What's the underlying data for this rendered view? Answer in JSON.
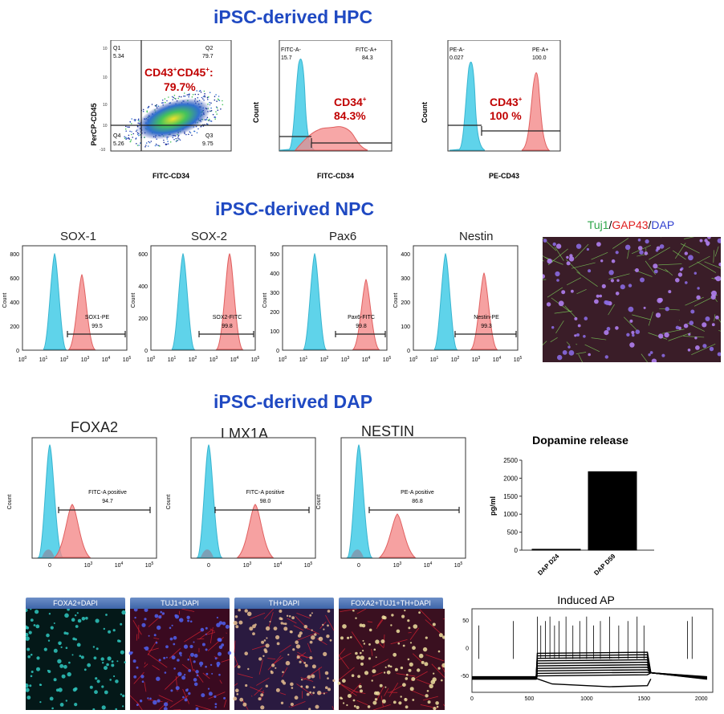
{
  "sections": {
    "hpc": "iPSC-derived HPC",
    "npc": "iPSC-derived NPC",
    "dap": "iPSC-derived DAP"
  },
  "colors": {
    "title": "#1f49c2",
    "red": "#c00000",
    "cyan": "#5fd3ea",
    "pink": "#f48a8a"
  },
  "hpc": {
    "scatter": {
      "ylabel": "PerCP-CD45",
      "xlabel": "FITC-CD34",
      "q1_name": "Q1",
      "q1_val": "5.34",
      "q2_name": "Q2",
      "q2_val": "79.7",
      "q3_name": "Q3",
      "q3_val": "9.75",
      "q4_name": "Q4",
      "q4_val": "5.26",
      "label_line1": "CD43",
      "label_sup1": "+",
      "label_mid": "CD45",
      "label_sup2": "+",
      "label_end": ":",
      "label_pct": "79.7%"
    },
    "hist_cd34": {
      "ylabel": "Count",
      "xlabel": "FITC-CD34",
      "neg_name": "FITC-A-",
      "neg_val": "15.7",
      "pos_name": "FITC-A+",
      "pos_val": "84.3",
      "label": "CD34",
      "label_sup": "+",
      "label_pct": "84.3%"
    },
    "hist_cd43": {
      "ylabel": "Count",
      "xlabel": "PE-CD43",
      "neg_name": "PE-A-",
      "neg_val": "0.027",
      "pos_name": "PE-A+",
      "pos_val": "100.0",
      "label": "CD43",
      "label_sup": "+",
      "label_pct": "100 %"
    }
  },
  "npc": {
    "plots": [
      {
        "title": "SOX-1",
        "gate": "SOX1-PE",
        "value": "99.5",
        "yticks": [
          "0",
          "200",
          "400",
          "600",
          "800"
        ]
      },
      {
        "title": "SOX-2",
        "gate": "SOX2-FITC",
        "value": "99.8",
        "yticks": [
          "0",
          "200",
          "400",
          "600"
        ]
      },
      {
        "title": "Pax6",
        "gate": "Pax6-FITC",
        "value": "99.8",
        "yticks": [
          "0",
          "100",
          "200",
          "300",
          "400",
          "500"
        ]
      },
      {
        "title": "Nestin",
        "gate": "Nestin-PE",
        "value": "99.3",
        "yticks": [
          "0",
          "100",
          "200",
          "300",
          "400"
        ]
      }
    ],
    "ylabel": "Count",
    "xticks": [
      "10",
      "10",
      "10",
      "10",
      "10",
      "10"
    ],
    "xexp": [
      "0",
      "1",
      "2",
      "3",
      "4",
      "5"
    ],
    "image_label": {
      "a": "Tuj1",
      "s1": "/",
      "b": "GAP43",
      "s2": "/",
      "c": "DAP"
    }
  },
  "dap": {
    "plots": [
      {
        "title": "FOXA2",
        "gate": "FITC-A positive",
        "value": "94.7"
      },
      {
        "title": "LMX1A",
        "gate": "FITC-A positive",
        "value": "98.0"
      },
      {
        "title": "NESTIN",
        "gate": "PE-A positive",
        "value": "86.8"
      }
    ],
    "ylabel": "Count",
    "xtick0": "0",
    "xexp": [
      "3",
      "4",
      "5"
    ]
  },
  "chart_data": [
    {
      "type": "bar",
      "title": "Dopamine release",
      "ylabel": "pg/ml",
      "xlabel": "",
      "categories": [
        "DAP D24",
        "DAP D59"
      ],
      "values": [
        25,
        2180
      ],
      "ylim": [
        0,
        2500
      ],
      "yticks": [
        0,
        500,
        1000,
        1500,
        2000,
        2500
      ]
    },
    {
      "type": "line",
      "title": "Induced AP",
      "xlabel": "",
      "ylabel": "",
      "xlim": [
        0,
        2100
      ],
      "ylim": [
        -80,
        70
      ],
      "xticks": [
        0,
        500,
        1000,
        1500,
        2000
      ],
      "yticks": [
        -50,
        0,
        50
      ]
    }
  ],
  "micro": [
    "FOXA2+DAPI",
    "TUJ1+DAPI",
    "TH+DAPI",
    "FOXA2+TUJ1+TH+DAPI"
  ]
}
